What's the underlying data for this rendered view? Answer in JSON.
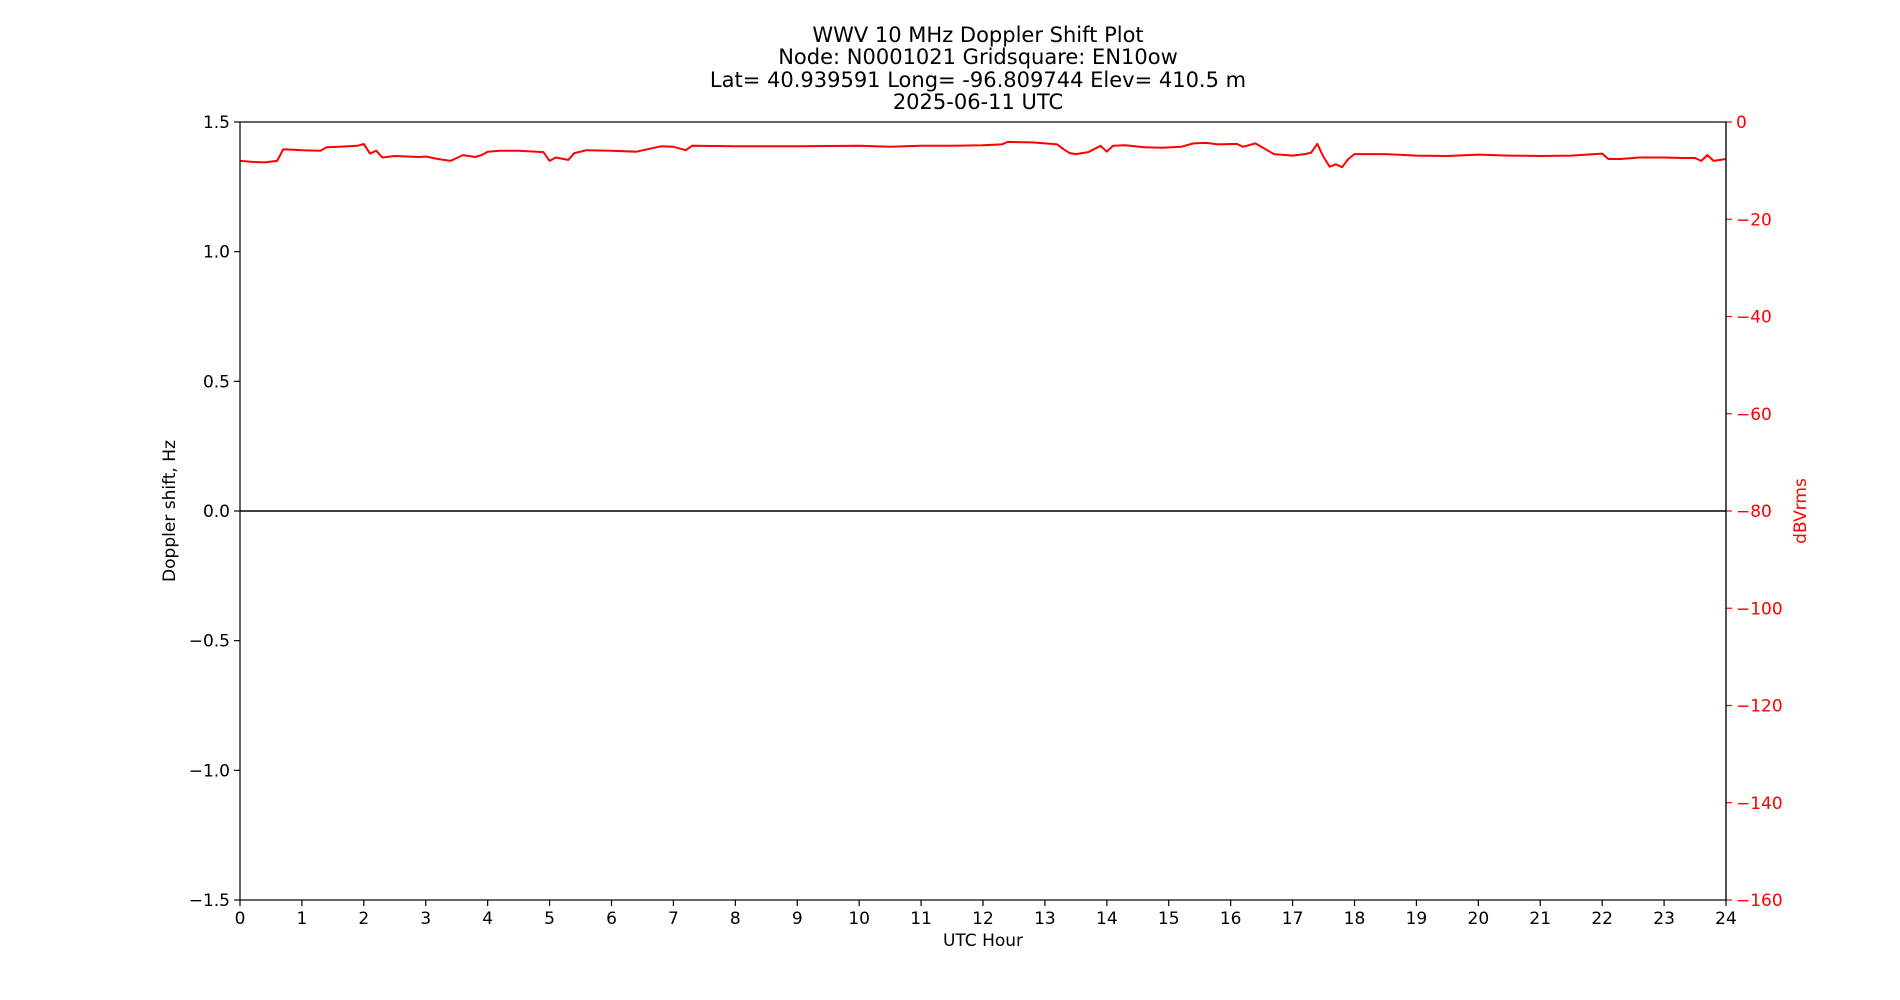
{
  "chart_data": {
    "type": "line",
    "title_lines": [
      "WWV 10 MHz Doppler Shift Plot",
      "Node:  N0001021     Gridsquare:  EN10ow",
      "Lat= 40.939591    Long= -96.809744    Elev= 410.5 m",
      "2025-06-11  UTC"
    ],
    "xlabel": "UTC Hour",
    "ylabel": "Doppler shift, Hz",
    "y2label": "dBVrms",
    "xlim": [
      0,
      24
    ],
    "ylim": [
      -1.5,
      1.5
    ],
    "y2lim": [
      -160,
      0
    ],
    "x_ticks": [
      "0",
      "1",
      "2",
      "3",
      "4",
      "5",
      "6",
      "7",
      "8",
      "9",
      "10",
      "11",
      "12",
      "13",
      "14",
      "15",
      "16",
      "17",
      "18",
      "19",
      "20",
      "21",
      "22",
      "23",
      "24"
    ],
    "y_ticks": [
      "−1.5",
      "−1.0",
      "−0.5",
      "0.0",
      "0.5",
      "1.0",
      "1.5"
    ],
    "y2_ticks": [
      "−160",
      "−140",
      "−120",
      "−100",
      "−80",
      "−60",
      "−40",
      "−20",
      "0"
    ],
    "grid": false,
    "colors": {
      "doppler": "#000000",
      "power": "#ff0000",
      "right_axis": "#ff0000"
    },
    "series": [
      {
        "axis": "left",
        "x": [
          0,
          2,
          4,
          6,
          8,
          10,
          12,
          14,
          16,
          18,
          20,
          22,
          24
        ],
        "y": [
          0,
          0,
          0,
          0,
          0,
          0,
          0,
          0,
          0,
          0,
          0,
          0,
          0
        ]
      },
      {
        "axis": "right",
        "x": [
          0,
          0.2,
          0.4,
          0.6,
          0.7,
          1.0,
          1.3,
          1.4,
          1.6,
          1.9,
          2.0,
          2.1,
          2.2,
          2.3,
          2.5,
          2.7,
          2.9,
          3.0,
          3.2,
          3.4,
          3.6,
          3.8,
          3.9,
          4.0,
          4.2,
          4.5,
          4.9,
          5.0,
          5.1,
          5.3,
          5.4,
          5.6,
          6.0,
          6.4,
          6.8,
          7.0,
          7.2,
          7.3,
          8.0,
          9.0,
          10.0,
          10.5,
          11.0,
          11.5,
          12.0,
          12.3,
          12.4,
          12.8,
          13.2,
          13.3,
          13.4,
          13.5,
          13.7,
          13.9,
          14.0,
          14.1,
          14.3,
          14.6,
          14.9,
          15.2,
          15.4,
          15.6,
          15.8,
          16.1,
          16.2,
          16.4,
          16.7,
          17.0,
          17.2,
          17.3,
          17.4,
          17.5,
          17.6,
          17.7,
          17.8,
          17.9,
          18.0,
          18.5,
          19.0,
          19.5,
          20.0,
          20.5,
          21.0,
          21.5,
          22.0,
          22.1,
          22.3,
          22.6,
          23.0,
          23.3,
          23.5,
          23.6,
          23.7,
          23.8,
          24.0
        ],
        "y": [
          -8,
          -8.2,
          -8.3,
          -8,
          -5.6,
          -5.8,
          -5.9,
          -5.2,
          -5.1,
          -4.9,
          -4.5,
          -6.5,
          -5.9,
          -7.3,
          -7.0,
          -7.1,
          -7.2,
          -7.1,
          -7.6,
          -8.0,
          -6.8,
          -7.2,
          -6.8,
          -6.1,
          -5.9,
          -5.9,
          -6.2,
          -8.0,
          -7.3,
          -7.8,
          -6.4,
          -5.8,
          -5.9,
          -6.1,
          -5.0,
          -5.1,
          -5.8,
          -4.9,
          -5.0,
          -5.0,
          -4.9,
          -5.1,
          -4.9,
          -4.9,
          -4.8,
          -4.6,
          -4.1,
          -4.2,
          -4.6,
          -5.6,
          -6.4,
          -6.6,
          -6.2,
          -4.9,
          -6.1,
          -4.9,
          -4.8,
          -5.2,
          -5.3,
          -5.1,
          -4.4,
          -4.3,
          -4.6,
          -4.5,
          -5.1,
          -4.4,
          -6.6,
          -6.9,
          -6.6,
          -6.3,
          -4.5,
          -7.2,
          -9.2,
          -8.7,
          -9.3,
          -7.6,
          -6.6,
          -6.6,
          -6.9,
          -7.0,
          -6.7,
          -6.9,
          -7.0,
          -6.9,
          -6.5,
          -7.6,
          -7.6,
          -7.3,
          -7.3,
          -7.4,
          -7.4,
          -8.0,
          -6.8,
          -8.0,
          -7.6
        ]
      }
    ]
  }
}
